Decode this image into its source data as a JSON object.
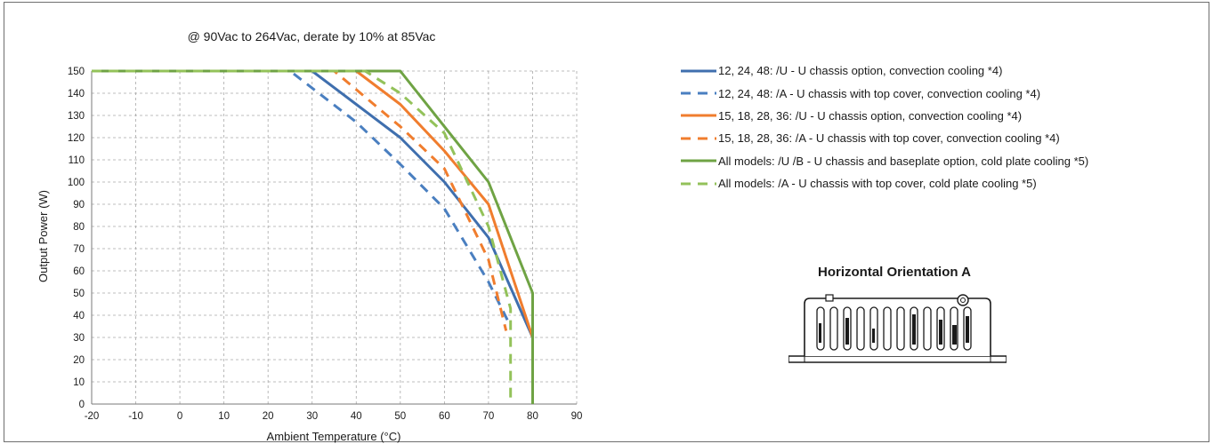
{
  "chart_data": {
    "type": "line",
    "title": "@ 90Vac to 264Vac, derate by 10% at 85Vac",
    "xlabel": "Ambient Temperature  (°C)",
    "ylabel": "Output Power  (W)",
    "xlim": [
      -20,
      90
    ],
    "ylim": [
      0,
      150
    ],
    "x_ticks": [
      "-20",
      "-10",
      "0",
      "10",
      "20",
      "30",
      "40",
      "50",
      "60",
      "70",
      "80",
      "90"
    ],
    "y_ticks": [
      "0",
      "10",
      "20",
      "30",
      "40",
      "50",
      "60",
      "70",
      "80",
      "90",
      "100",
      "110",
      "120",
      "130",
      "140",
      "150"
    ],
    "grid": true,
    "legend_position": "right",
    "series": [
      {
        "name": "12, 24, 48: /U - U chassis option, convection cooling *4)",
        "color": "#3f6fae",
        "dash": "solid",
        "points": [
          [
            -20,
            150
          ],
          [
            30,
            150
          ],
          [
            40,
            135
          ],
          [
            50,
            120
          ],
          [
            60,
            100
          ],
          [
            70,
            75
          ],
          [
            80,
            30
          ]
        ]
      },
      {
        "name": "12, 24, 48: /A - U chassis with top cover, convection cooling *4)",
        "color": "#4a7fc0",
        "dash": "dashed",
        "points": [
          [
            -20,
            150
          ],
          [
            25,
            150
          ],
          [
            40,
            127
          ],
          [
            50,
            108
          ],
          [
            60,
            88
          ],
          [
            70,
            55
          ],
          [
            75,
            35
          ]
        ]
      },
      {
        "name": "15, 18, 28, 36: /U - U chassis option, convection cooling *4)",
        "color": "#f07d2e",
        "dash": "solid",
        "points": [
          [
            -20,
            150
          ],
          [
            40,
            150
          ],
          [
            50,
            135
          ],
          [
            60,
            114
          ],
          [
            70,
            90
          ],
          [
            80,
            30
          ]
        ]
      },
      {
        "name": "15, 18, 28, 36: /A - U chassis with top cover, convection cooling *4)",
        "color": "#f07d2e",
        "dash": "dashed",
        "points": [
          [
            -20,
            150
          ],
          [
            35,
            150
          ],
          [
            50,
            125
          ],
          [
            60,
            106
          ],
          [
            70,
            65
          ],
          [
            74,
            33
          ]
        ]
      },
      {
        "name": "All models: /U /B - U chassis and baseplate option, cold plate cooling *5)",
        "color": "#6fa344",
        "dash": "solid",
        "points": [
          [
            -20,
            150
          ],
          [
            50,
            150
          ],
          [
            70,
            100
          ],
          [
            80,
            50
          ],
          [
            80,
            0
          ]
        ]
      },
      {
        "name": "All models: /A -  U chassis with top cover, cold plate cooling *5)",
        "color": "#93c25a",
        "dash": "dashed",
        "points": [
          [
            -20,
            150
          ],
          [
            42,
            150
          ],
          [
            50,
            140
          ],
          [
            60,
            122
          ],
          [
            70,
            80
          ],
          [
            75,
            43
          ],
          [
            75,
            0
          ]
        ]
      }
    ]
  },
  "legend": {
    "items": [
      "12, 24, 48: /U - U chassis option, convection cooling *4)",
      "12, 24, 48: /A - U chassis with top cover, convection cooling *4)",
      "15, 18, 28, 36: /U - U chassis option, convection cooling *4)",
      "15, 18, 28, 36: /A - U chassis with top cover, convection cooling *4)",
      "All models: /U /B - U chassis and baseplate option, cold plate cooling *5)",
      "All models: /A -  U chassis with top cover, cold plate cooling *5)"
    ]
  },
  "orientation": {
    "title": "Horizontal Orientation A",
    "icon": "power-supply-chassis-icon"
  }
}
